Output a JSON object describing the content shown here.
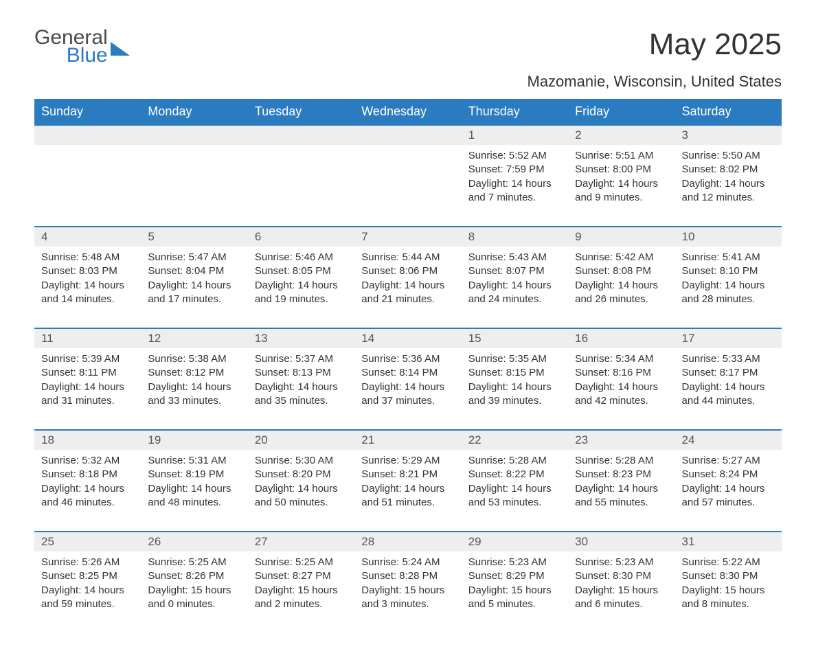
{
  "logo": {
    "general": "General",
    "blue": "Blue"
  },
  "title": "May 2025",
  "subtitle": "Mazomanie, Wisconsin, United States",
  "colors": {
    "header_bg": "#2a7bbf",
    "header_text": "#ffffff",
    "daynum_bg": "#eeeeee",
    "rule": "#2a7bbf",
    "body_text": "#333333",
    "logo_blue": "#2a7bbf",
    "logo_gray": "#4a4a4a",
    "page_bg": "#ffffff"
  },
  "days_of_week": [
    "Sunday",
    "Monday",
    "Tuesday",
    "Wednesday",
    "Thursday",
    "Friday",
    "Saturday"
  ],
  "weeks": [
    [
      null,
      null,
      null,
      null,
      {
        "n": "1",
        "sr": "Sunrise: 5:52 AM",
        "ss": "Sunset: 7:59 PM",
        "dl": "Daylight: 14 hours and 7 minutes."
      },
      {
        "n": "2",
        "sr": "Sunrise: 5:51 AM",
        "ss": "Sunset: 8:00 PM",
        "dl": "Daylight: 14 hours and 9 minutes."
      },
      {
        "n": "3",
        "sr": "Sunrise: 5:50 AM",
        "ss": "Sunset: 8:02 PM",
        "dl": "Daylight: 14 hours and 12 minutes."
      }
    ],
    [
      {
        "n": "4",
        "sr": "Sunrise: 5:48 AM",
        "ss": "Sunset: 8:03 PM",
        "dl": "Daylight: 14 hours and 14 minutes."
      },
      {
        "n": "5",
        "sr": "Sunrise: 5:47 AM",
        "ss": "Sunset: 8:04 PM",
        "dl": "Daylight: 14 hours and 17 minutes."
      },
      {
        "n": "6",
        "sr": "Sunrise: 5:46 AM",
        "ss": "Sunset: 8:05 PM",
        "dl": "Daylight: 14 hours and 19 minutes."
      },
      {
        "n": "7",
        "sr": "Sunrise: 5:44 AM",
        "ss": "Sunset: 8:06 PM",
        "dl": "Daylight: 14 hours and 21 minutes."
      },
      {
        "n": "8",
        "sr": "Sunrise: 5:43 AM",
        "ss": "Sunset: 8:07 PM",
        "dl": "Daylight: 14 hours and 24 minutes."
      },
      {
        "n": "9",
        "sr": "Sunrise: 5:42 AM",
        "ss": "Sunset: 8:08 PM",
        "dl": "Daylight: 14 hours and 26 minutes."
      },
      {
        "n": "10",
        "sr": "Sunrise: 5:41 AM",
        "ss": "Sunset: 8:10 PM",
        "dl": "Daylight: 14 hours and 28 minutes."
      }
    ],
    [
      {
        "n": "11",
        "sr": "Sunrise: 5:39 AM",
        "ss": "Sunset: 8:11 PM",
        "dl": "Daylight: 14 hours and 31 minutes."
      },
      {
        "n": "12",
        "sr": "Sunrise: 5:38 AM",
        "ss": "Sunset: 8:12 PM",
        "dl": "Daylight: 14 hours and 33 minutes."
      },
      {
        "n": "13",
        "sr": "Sunrise: 5:37 AM",
        "ss": "Sunset: 8:13 PM",
        "dl": "Daylight: 14 hours and 35 minutes."
      },
      {
        "n": "14",
        "sr": "Sunrise: 5:36 AM",
        "ss": "Sunset: 8:14 PM",
        "dl": "Daylight: 14 hours and 37 minutes."
      },
      {
        "n": "15",
        "sr": "Sunrise: 5:35 AM",
        "ss": "Sunset: 8:15 PM",
        "dl": "Daylight: 14 hours and 39 minutes."
      },
      {
        "n": "16",
        "sr": "Sunrise: 5:34 AM",
        "ss": "Sunset: 8:16 PM",
        "dl": "Daylight: 14 hours and 42 minutes."
      },
      {
        "n": "17",
        "sr": "Sunrise: 5:33 AM",
        "ss": "Sunset: 8:17 PM",
        "dl": "Daylight: 14 hours and 44 minutes."
      }
    ],
    [
      {
        "n": "18",
        "sr": "Sunrise: 5:32 AM",
        "ss": "Sunset: 8:18 PM",
        "dl": "Daylight: 14 hours and 46 minutes."
      },
      {
        "n": "19",
        "sr": "Sunrise: 5:31 AM",
        "ss": "Sunset: 8:19 PM",
        "dl": "Daylight: 14 hours and 48 minutes."
      },
      {
        "n": "20",
        "sr": "Sunrise: 5:30 AM",
        "ss": "Sunset: 8:20 PM",
        "dl": "Daylight: 14 hours and 50 minutes."
      },
      {
        "n": "21",
        "sr": "Sunrise: 5:29 AM",
        "ss": "Sunset: 8:21 PM",
        "dl": "Daylight: 14 hours and 51 minutes."
      },
      {
        "n": "22",
        "sr": "Sunrise: 5:28 AM",
        "ss": "Sunset: 8:22 PM",
        "dl": "Daylight: 14 hours and 53 minutes."
      },
      {
        "n": "23",
        "sr": "Sunrise: 5:28 AM",
        "ss": "Sunset: 8:23 PM",
        "dl": "Daylight: 14 hours and 55 minutes."
      },
      {
        "n": "24",
        "sr": "Sunrise: 5:27 AM",
        "ss": "Sunset: 8:24 PM",
        "dl": "Daylight: 14 hours and 57 minutes."
      }
    ],
    [
      {
        "n": "25",
        "sr": "Sunrise: 5:26 AM",
        "ss": "Sunset: 8:25 PM",
        "dl": "Daylight: 14 hours and 59 minutes."
      },
      {
        "n": "26",
        "sr": "Sunrise: 5:25 AM",
        "ss": "Sunset: 8:26 PM",
        "dl": "Daylight: 15 hours and 0 minutes."
      },
      {
        "n": "27",
        "sr": "Sunrise: 5:25 AM",
        "ss": "Sunset: 8:27 PM",
        "dl": "Daylight: 15 hours and 2 minutes."
      },
      {
        "n": "28",
        "sr": "Sunrise: 5:24 AM",
        "ss": "Sunset: 8:28 PM",
        "dl": "Daylight: 15 hours and 3 minutes."
      },
      {
        "n": "29",
        "sr": "Sunrise: 5:23 AM",
        "ss": "Sunset: 8:29 PM",
        "dl": "Daylight: 15 hours and 5 minutes."
      },
      {
        "n": "30",
        "sr": "Sunrise: 5:23 AM",
        "ss": "Sunset: 8:30 PM",
        "dl": "Daylight: 15 hours and 6 minutes."
      },
      {
        "n": "31",
        "sr": "Sunrise: 5:22 AM",
        "ss": "Sunset: 8:30 PM",
        "dl": "Daylight: 15 hours and 8 minutes."
      }
    ]
  ]
}
